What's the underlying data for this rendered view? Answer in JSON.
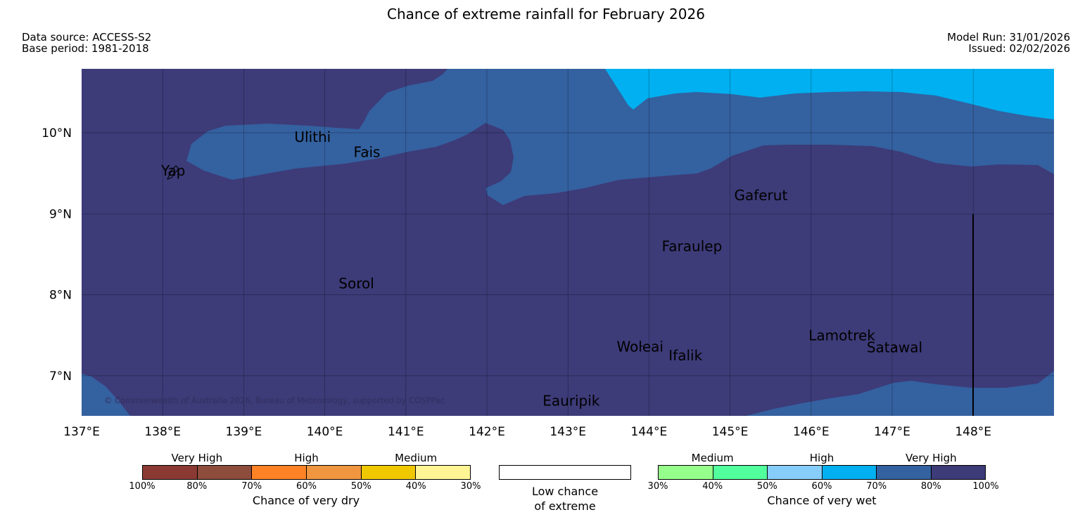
{
  "title": "Chance of extreme rainfall for February 2026",
  "meta": {
    "data_source": "Data source: ACCESS-S2",
    "base_period": "Base period: 1981-2018",
    "model_run": "Model Run: 31/01/2026",
    "issued": "Issued: 02/02/2026"
  },
  "map": {
    "lon_range": [
      137,
      149
    ],
    "lat_range": [
      6.5,
      10.8
    ],
    "lon_ticks": [
      "137°E",
      "138°E",
      "139°E",
      "140°E",
      "141°E",
      "142°E",
      "143°E",
      "144°E",
      "145°E",
      "146°E",
      "147°E",
      "148°E"
    ],
    "lat_ticks": [
      "10°N",
      "9°N",
      "8°N",
      "7°N"
    ],
    "copyright": "© Commonwealth of Australia 2026, Bureau of Meteorology, supported by COSPPac",
    "colors": {
      "very_high_wet": "#3d3b78",
      "high_wet_70": "#3461a0",
      "high_wet_60": "#00b0f0"
    },
    "places": [
      {
        "name": "Ulithi",
        "lon": 139.85,
        "lat": 9.95
      },
      {
        "name": "Fais",
        "lon": 140.52,
        "lat": 9.76
      },
      {
        "name": "Yap",
        "lon": 138.13,
        "lat": 9.53
      },
      {
        "name": "Gaferut",
        "lon": 145.38,
        "lat": 9.23
      },
      {
        "name": "Faraulep",
        "lon": 144.53,
        "lat": 8.6
      },
      {
        "name": "Sorol",
        "lon": 140.39,
        "lat": 8.14
      },
      {
        "name": "Woleai",
        "lon": 143.89,
        "lat": 7.36
      },
      {
        "name": "Ifalik",
        "lon": 144.45,
        "lat": 7.25
      },
      {
        "name": "Lamotrek",
        "lon": 146.38,
        "lat": 7.5
      },
      {
        "name": "Satawal",
        "lon": 147.03,
        "lat": 7.35
      },
      {
        "name": "Eauripik",
        "lon": 143.04,
        "lat": 6.69
      }
    ]
  },
  "legend": {
    "dry": {
      "categories": [
        "Very High",
        "High",
        "Medium"
      ],
      "colors": [
        "#8b3a33",
        "#8d4c3c",
        "#ff8224",
        "#f09640",
        "#f0c800",
        "#fff595"
      ],
      "ticks": [
        "100%",
        "80%",
        "70%",
        "60%",
        "50%",
        "40%",
        "30%"
      ],
      "caption": "Chance of very dry"
    },
    "low": {
      "line1": "Low chance",
      "line2": "of extreme"
    },
    "wet": {
      "categories": [
        "Medium",
        "High",
        "Very High"
      ],
      "colors": [
        "#96ff8c",
        "#52ff9d",
        "#87cdfa",
        "#00b0f0",
        "#3461a0",
        "#3d3b78"
      ],
      "ticks": [
        "30%",
        "40%",
        "50%",
        "60%",
        "70%",
        "80%",
        "100%"
      ],
      "caption": "Chance of very wet"
    }
  }
}
